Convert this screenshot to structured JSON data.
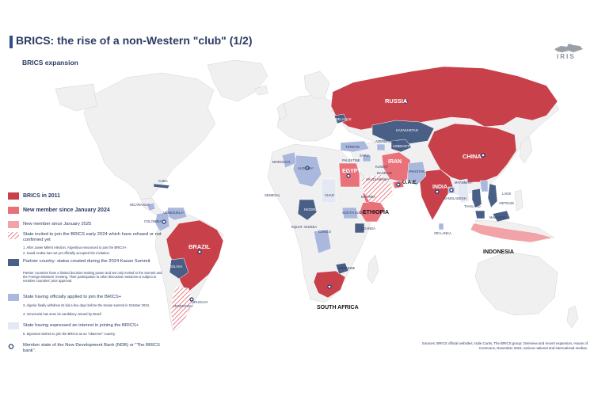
{
  "header": {
    "title": "BRICS: the rise of a non-Western \"club\" (1/2)",
    "subtitle": "BRICS expansion",
    "logo": "IRIS"
  },
  "colors": {
    "brics_2011": "#c8404a",
    "member_2024": "#e8717a",
    "member_2025": "#f2a3a8",
    "invited": "#f0a5aa",
    "partner": "#4a5f85",
    "applied": "#a9b8dc",
    "interest": "#e4e8f3",
    "land": "#f0f0f0",
    "ndb_marker": "#1f3a6b"
  },
  "legend": {
    "items": [
      {
        "label": "BRICS in 2011",
        "notes": []
      },
      {
        "label": "New member since January 2024",
        "notes": []
      },
      {
        "label": "New member since January 2025",
        "notes": []
      },
      {
        "label": "State invited to join the BRICS early 2024 which have refused or not confirmed yet",
        "notes": [
          "1. After Javier Milei's election, Argentina renounced to join the BRICS+.",
          "2. Saudi Arabia has not yet officially accepted the invitation."
        ]
      },
      {
        "label": "Partner country: status created during the 2024 Kazan Summit",
        "notes": [
          "Partner countries have a limited decision-making power and are only invited to the Summit and the Foreign Ministers' meeting. Their participation to other discussion sessions is subject to member countries' prior approval."
        ]
      },
      {
        "label": "State having officially applied to join the BRICS+",
        "notes": [
          "3. Algeria finally withdrew its bid a few days before the Kazan summit in October 2024.",
          "4. Venezuela has seen its candidacy vetoed by Brazil"
        ]
      },
      {
        "label": "State having expressed an interest in joining the BRICS+",
        "notes": [
          "5. Myanmar wishes to join the BRICS as an \"observer\" country."
        ]
      },
      {
        "label": "Member state of the New Development Bank (NDB) or \"The BRICS bank\".",
        "notes": []
      }
    ]
  },
  "labels": {
    "major": {
      "russia": "RUSSIA",
      "china": "CHINA",
      "brazil": "BRAZIL",
      "india": "INDIA",
      "south_africa": "SOUTH AFRICA",
      "egypt": "EGYPT",
      "iran": "IRAN",
      "ethiopia": "ETHIOPIA",
      "uae": "U.A.E.",
      "indonesia": "INDONESIA"
    },
    "minor": {
      "belarus": "BELARUS",
      "kazakhstan": "KAZAKHSTAN",
      "uzbekistan": "UZBEKISTAN",
      "azerbaijan": "AZERBAIJAN",
      "turkiye": "TÜRKIYE",
      "syria": "SYRIA",
      "palestine": "PALESTINE",
      "kuwait": "KUWAIT",
      "bahrain": "BAHRAIN",
      "saudi": "SAUDI ARABIA²",
      "pakistan": "PAKISTAN",
      "morocco": "MOROCCO",
      "algeria": "ALGERIA³",
      "senegal": "SENEGAL",
      "chad": "CHAD",
      "nigeria": "NIGERIA",
      "eq_guinea": "EQUAT. GUINEA",
      "congo": "CONGO",
      "eritrea": "ERITREA",
      "south_sudan": "SOUTH SUDAN",
      "uganda": "UGANDA",
      "zimbabwe": "ZIMBABWE",
      "cuba": "CUBA",
      "nicaragua": "NICARAGUA",
      "venezuela": "VENEZUELA⁴",
      "colombia": "COLOMBIA",
      "bolivia": "BOLIVIA",
      "uruguay": "URUGUAY",
      "argentina": "ARGENTINA¹",
      "bangladesh": "BANGLADESH",
      "sri_lanka": "SRI LANKA",
      "myanmar": "MYANMAR⁵",
      "laos": "LAOS",
      "thailand": "THAILAND",
      "vietnam": "VIETNAM",
      "malaysia": "MALAYSIA"
    }
  },
  "sources": "Sources: BRICS official websites; Isdie Curtis, The BRICS group: Overview and recent expansion, House of Commons, November 2024; various national and international medias."
}
